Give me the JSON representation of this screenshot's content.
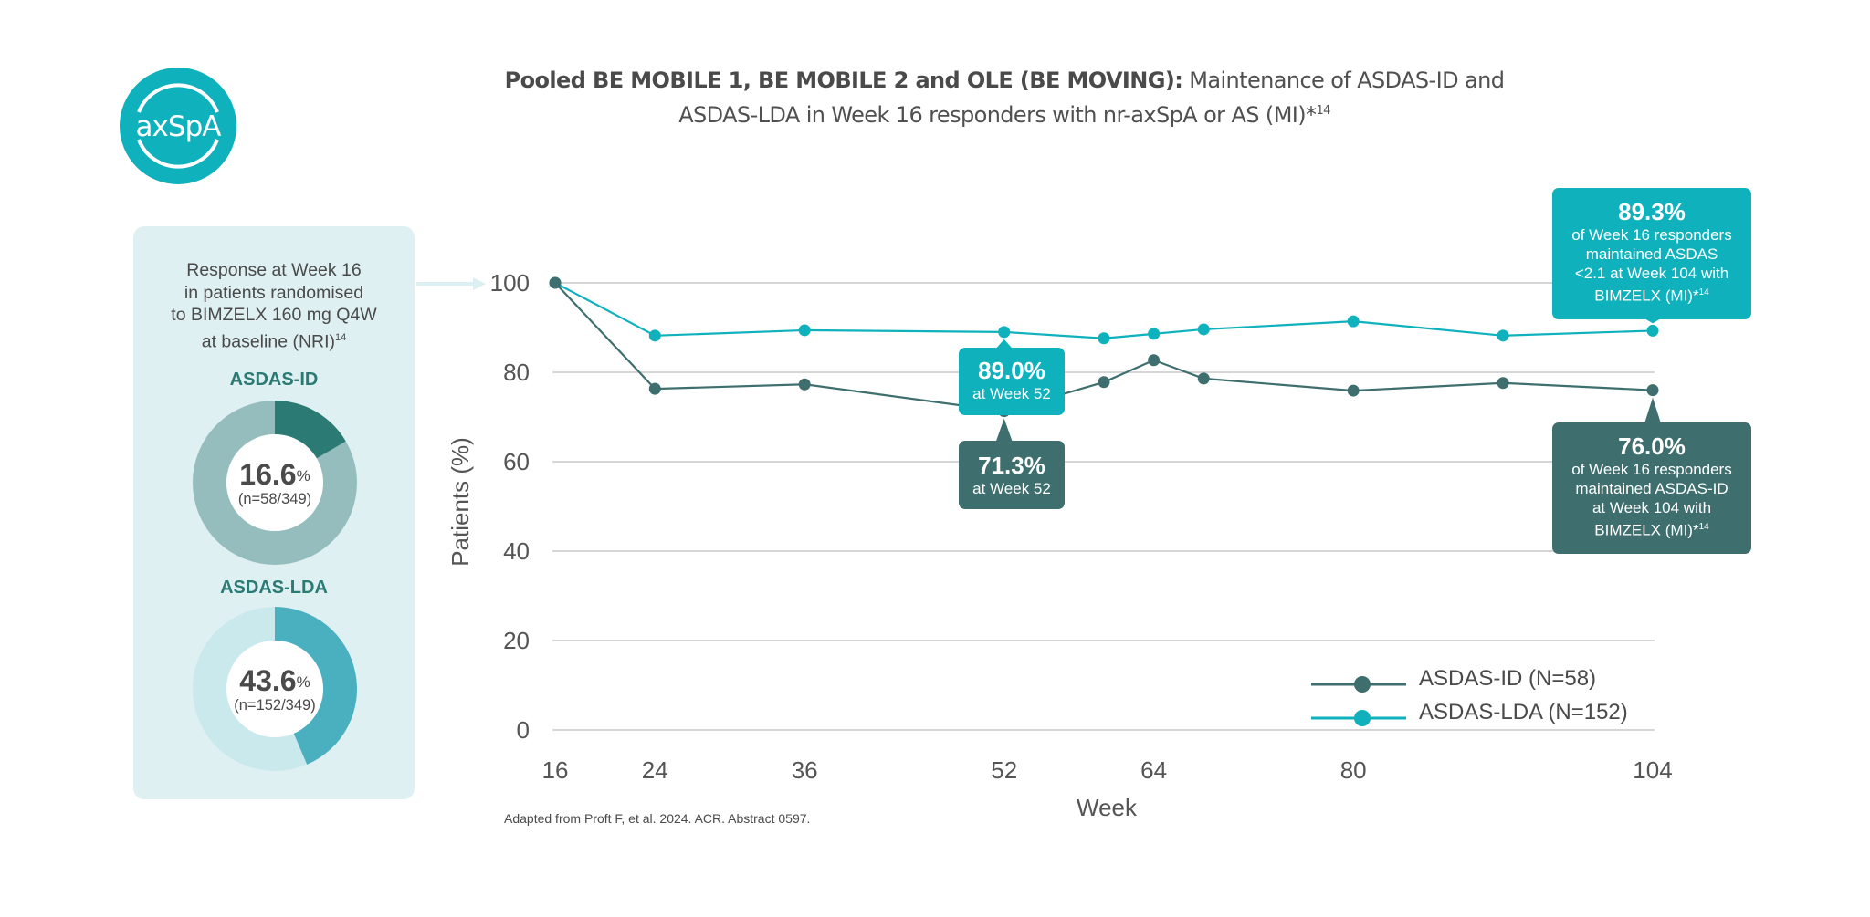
{
  "logo": {
    "text": "axSpA",
    "color": "#0fb1bd"
  },
  "title": {
    "bold": "Pooled BE MOBILE 1, BE MOBILE 2 and OLE (BE MOVING):",
    "regular_line1": " Maintenance of ASDAS-ID and",
    "line2": "ASDAS-LDA in Week 16 responders with nr-axSpA or AS (MI)*",
    "line2_sup": "14"
  },
  "panel": {
    "intro_lines": [
      "Response at Week 16",
      "in patients randomised",
      "to BIMZELX 160 mg Q4W",
      "at baseline (NRI)"
    ],
    "intro_sup": "14",
    "donuts": [
      {
        "title": "ASDAS-ID",
        "value": 16.6,
        "pct_text": "16.6",
        "pct_sign": "%",
        "n_text": "(n=58/349)",
        "fill": "#2b7a73",
        "track": "#96bdbd"
      },
      {
        "title": "ASDAS-LDA",
        "value": 43.6,
        "pct_text": "43.6",
        "pct_sign": "%",
        "n_text": "(n=152/349)",
        "fill": "#4ab0bf",
        "track": "#c9e9ed"
      }
    ]
  },
  "colors": {
    "id": "#3e6f6e",
    "lda": "#0fb1bd",
    "grid": "#c8c8c8",
    "text": "#4a4a4a"
  },
  "chart_data": {
    "type": "line",
    "title": "Pooled BE MOBILE 1, BE MOBILE 2 and OLE (BE MOVING): Maintenance of ASDAS-ID and ASDAS-LDA in Week 16 responders with nr-axSpA or AS (MI)*14",
    "xlabel": "Week",
    "ylabel": "Patients (%)",
    "xlim": [
      16,
      104
    ],
    "ylim": [
      0,
      100
    ],
    "xticks": [
      16,
      24,
      36,
      52,
      64,
      80,
      104
    ],
    "yticks": [
      0,
      20,
      40,
      60,
      80,
      100
    ],
    "grid": "horizontal",
    "legend_position": "bottom-right",
    "x": [
      16,
      24,
      36,
      52,
      60,
      64,
      68,
      80,
      92,
      104
    ],
    "series": [
      {
        "name": "ASDAS-ID (N=58)",
        "key": "id",
        "values": [
          100,
          76.3,
          77.3,
          71.3,
          77.8,
          82.7,
          78.6,
          75.9,
          77.6,
          76.0
        ]
      },
      {
        "name": "ASDAS-LDA (N=152)",
        "key": "lda",
        "values": [
          100,
          88.2,
          89.4,
          89.0,
          87.6,
          88.6,
          89.6,
          91.4,
          88.2,
          89.3
        ]
      }
    ],
    "annotations": [
      {
        "series": "lda",
        "week": 52,
        "big": "89.0%",
        "lines": [
          "at Week 52"
        ],
        "sup": ""
      },
      {
        "series": "id",
        "week": 52,
        "big": "71.3%",
        "lines": [
          "at Week 52"
        ],
        "sup": ""
      },
      {
        "series": "lda",
        "week": 104,
        "big": "89.3%",
        "lines": [
          "of Week 16 responders",
          "maintained ASDAS",
          "<2.1 at Week 104 with",
          "BIMZELX (MI)*"
        ],
        "sup": "14"
      },
      {
        "series": "id",
        "week": 104,
        "big": "76.0%",
        "lines": [
          "of Week 16 responders",
          "maintained ASDAS-ID",
          "at Week 104 with",
          "BIMZELX (MI)*"
        ],
        "sup": "14"
      }
    ]
  },
  "footnote": "Adapted from Proft F, et al. 2024. ACR. Abstract 0597."
}
